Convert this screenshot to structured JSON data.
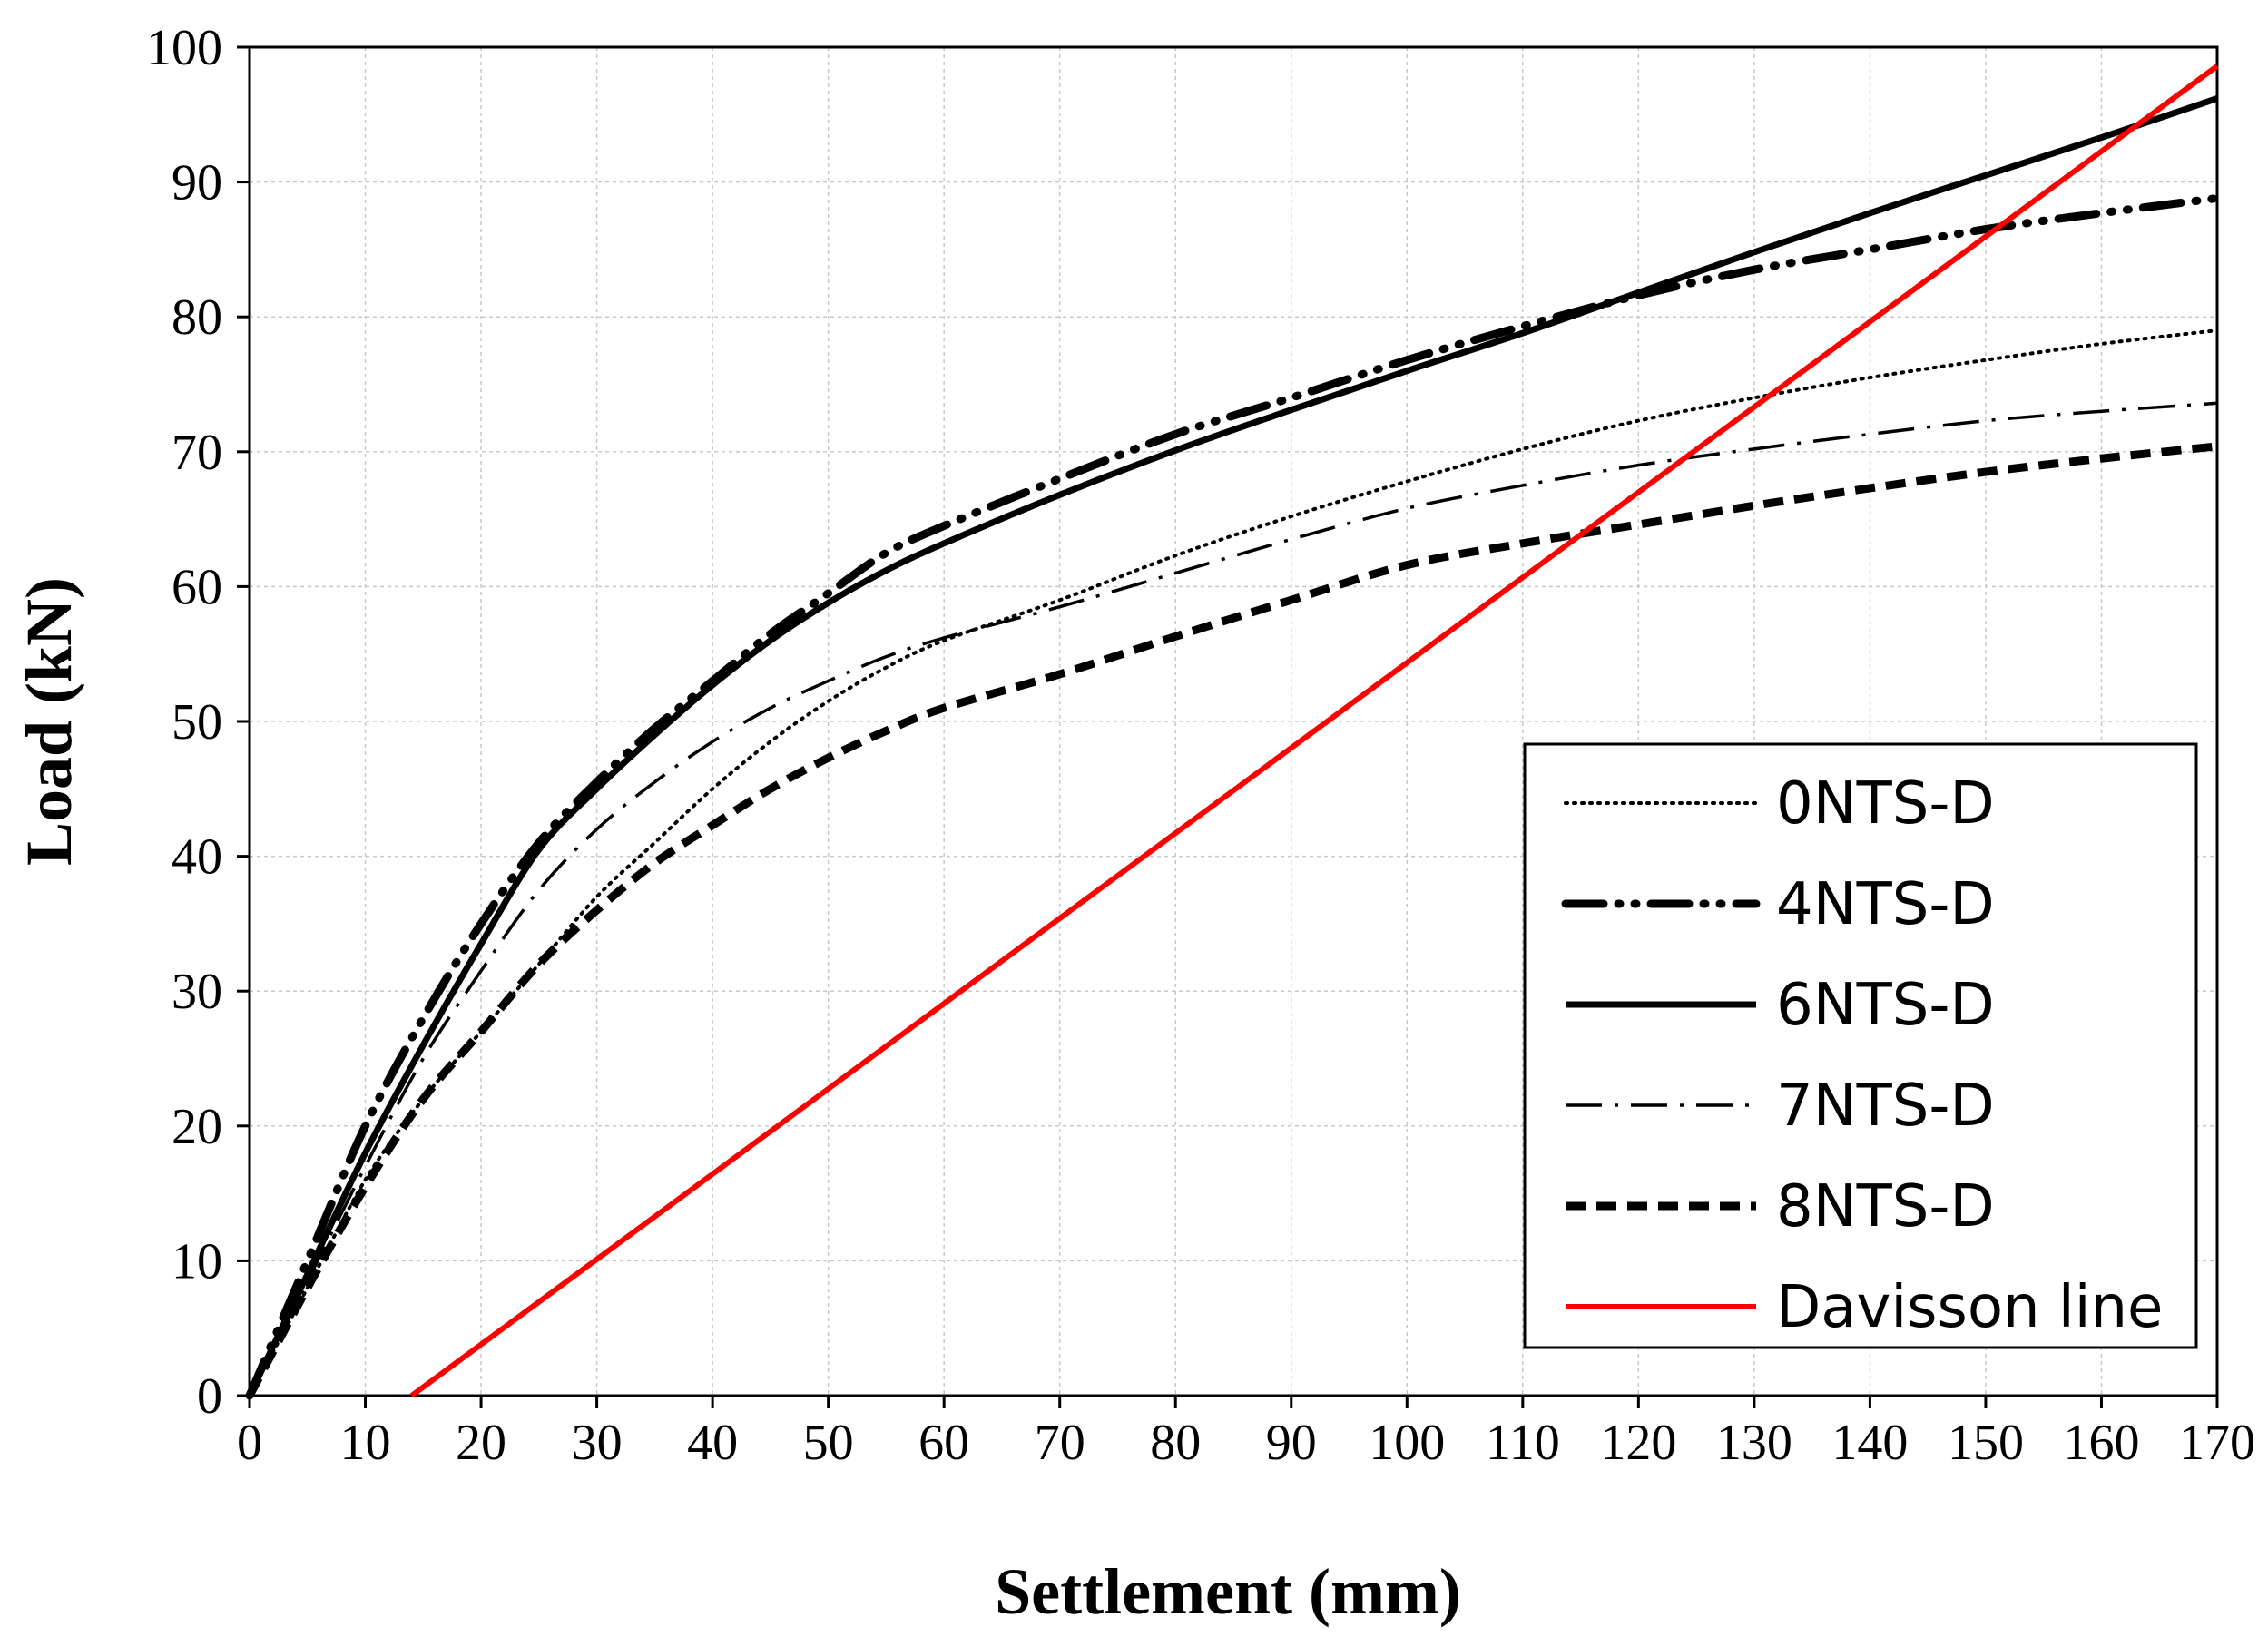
{
  "chart_data": {
    "type": "line",
    "title": "",
    "xlabel": "Settlement (mm)",
    "ylabel": "Load (kN)",
    "xlim": [
      0,
      170
    ],
    "ylim": [
      0,
      100
    ],
    "xticks": [
      "0",
      "10",
      "20",
      "30",
      "40",
      "50",
      "60",
      "70",
      "80",
      "90",
      "100",
      "110",
      "120",
      "130",
      "140",
      "150",
      "160",
      "170"
    ],
    "yticks": [
      "0",
      "10",
      "20",
      "30",
      "40",
      "50",
      "60",
      "70",
      "80",
      "90",
      "100"
    ],
    "grid": true,
    "legend_position": "right",
    "series": [
      {
        "name": "0NTS-D",
        "style": "dotted",
        "color": "#000000",
        "x": [
          0,
          5,
          10,
          15,
          20,
          25,
          30,
          35,
          40,
          45,
          50,
          55,
          60,
          70,
          80,
          90,
          100,
          110,
          120,
          130,
          140,
          150,
          160,
          170
        ],
        "y": [
          0,
          8,
          16,
          22,
          27,
          32,
          37,
          41,
          45,
          48.5,
          51.5,
          54,
          56,
          59,
          62.3,
          65.2,
          67.8,
          70.2,
          72.3,
          74,
          75.5,
          76.8,
          78,
          79
        ]
      },
      {
        "name": "4NTS-D",
        "style": "dash-dot-dot",
        "color": "#000000",
        "x": [
          0,
          5,
          10,
          15,
          20,
          25,
          30,
          35,
          40,
          45,
          50,
          55,
          60,
          70,
          80,
          90,
          100,
          110,
          120,
          130,
          140,
          150,
          160,
          170
        ],
        "y": [
          0,
          10,
          20,
          28,
          35,
          41,
          45.5,
          49.5,
          53,
          56.5,
          59.5,
          62.5,
          64.5,
          68,
          71.3,
          74,
          76.8,
          79.3,
          81.6,
          83.5,
          85,
          86.5,
          87.7,
          88.8
        ]
      },
      {
        "name": "6NTS-D",
        "style": "solid-thick",
        "color": "#000000",
        "x": [
          0,
          5,
          10,
          15,
          20,
          25,
          30,
          35,
          40,
          45,
          50,
          55,
          60,
          70,
          80,
          90,
          100,
          110,
          120,
          130,
          140,
          150,
          160,
          170
        ],
        "y": [
          0,
          9,
          18,
          26,
          33.5,
          40.5,
          45,
          49,
          52.7,
          56,
          58.8,
          61.2,
          63.2,
          66.8,
          70.1,
          73.1,
          76,
          78.8,
          81.8,
          84.8,
          87.7,
          90.5,
          93.3,
          96.2
        ]
      },
      {
        "name": "7NTS-D",
        "style": "dash-dot",
        "color": "#000000",
        "x": [
          0,
          5,
          10,
          15,
          20,
          25,
          30,
          35,
          40,
          45,
          50,
          55,
          60,
          70,
          80,
          90,
          100,
          110,
          120,
          130,
          140,
          150,
          160,
          170
        ],
        "y": [
          0,
          8.5,
          17,
          25,
          31.5,
          37.5,
          42,
          45.5,
          48.5,
          51,
          53,
          54.8,
          56.2,
          58.5,
          61,
          63.5,
          65.8,
          67.5,
          69,
          70.2,
          71.3,
          72.3,
          73,
          73.6
        ]
      },
      {
        "name": "8NTS-D",
        "style": "dashed-thick",
        "color": "#000000",
        "x": [
          0,
          5,
          10,
          15,
          20,
          25,
          30,
          35,
          40,
          45,
          50,
          55,
          60,
          70,
          80,
          90,
          100,
          110,
          120,
          130,
          140,
          150,
          160,
          170
        ],
        "y": [
          0,
          8,
          15.5,
          22,
          27,
          32,
          36,
          39.5,
          42.3,
          45,
          47.3,
          49.3,
          51,
          53.5,
          56.3,
          59,
          61.6,
          63.2,
          64.6,
          66,
          67.3,
          68.5,
          69.5,
          70.4
        ]
      },
      {
        "name": "Davisson line",
        "style": "solid",
        "color": "#ff0000",
        "x": [
          14,
          170
        ],
        "y": [
          0,
          98.6
        ]
      }
    ]
  }
}
